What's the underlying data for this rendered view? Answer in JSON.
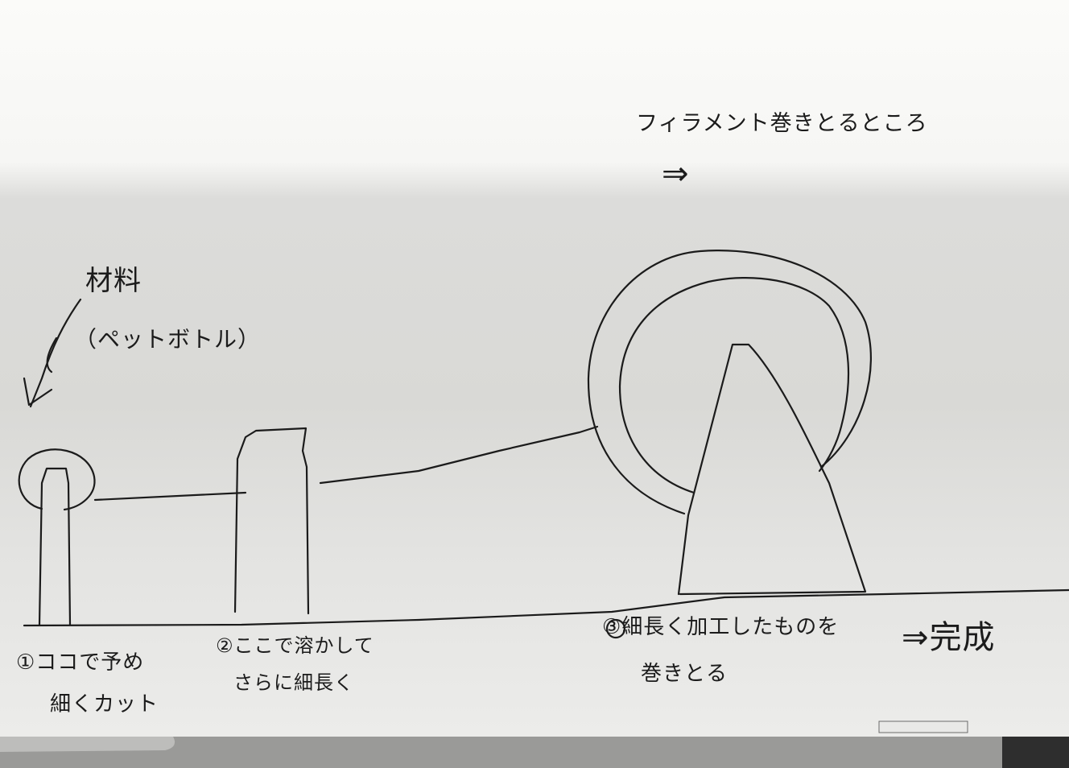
{
  "labels": {
    "material_title": "材料",
    "material_sub": "（ペットボトル）",
    "step1_line1": "①ココで予め",
    "step1_line2": "細くカット",
    "step2_line1": "②ここで溶かして",
    "step2_line2": "さらに細長く",
    "step3_line1": "③細長く加工したものを",
    "step3_line2": "巻きとる",
    "finish": "⇒完成",
    "filament_note": "フィラメント巻きとるところ",
    "filament_arrow": "⇒"
  },
  "colors": {
    "ink": "#1b1b1b",
    "paper_light": "#fbfbf9",
    "paper_shadow": "#d6d6d3",
    "desk": "#2b2b2b"
  }
}
